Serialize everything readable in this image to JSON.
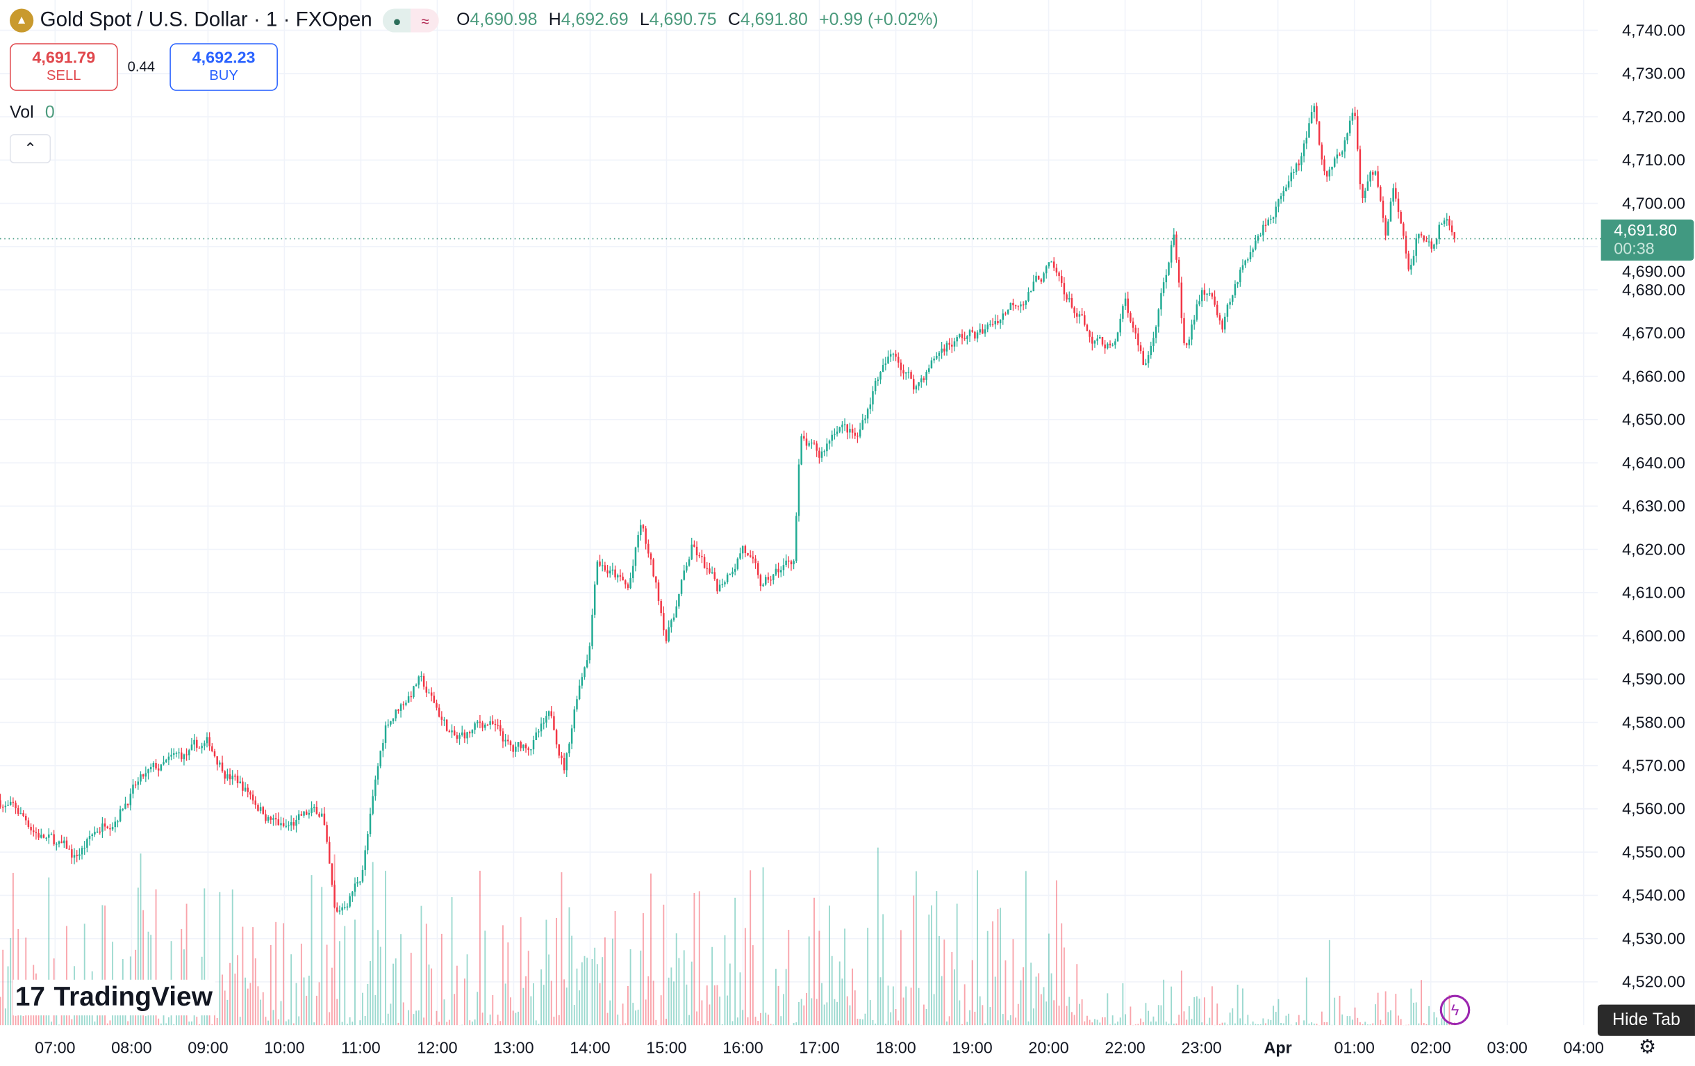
{
  "header": {
    "symbol": "Gold Spot / U.S. Dollar · 1 · FXOpen",
    "open_label": "O",
    "open": "4,690.98",
    "high_label": "H",
    "high": "4,692.69",
    "low_label": "L",
    "low": "4,690.75",
    "close_label": "C",
    "close": "4,691.80",
    "change": "+0.99 (+0.02%)",
    "market_status_icon": "dot",
    "data_delay_icon": "≈"
  },
  "trade": {
    "sell_price": "4,691.79",
    "sell_label": "SELL",
    "spread": "0.44",
    "buy_price": "4,692.23",
    "buy_label": "BUY"
  },
  "volume": {
    "label": "Vol",
    "value": "0"
  },
  "last_price": {
    "price": "4,691.80",
    "countdown": "00:38"
  },
  "branding": {
    "name": "TradingView"
  },
  "hide_tab": "Hide Tab",
  "colors": {
    "up": "#22ab94",
    "down": "#f23645",
    "last": "#419981",
    "sell": "#e0474c",
    "buy": "#2962ff",
    "grid": "#f0f3fa"
  },
  "chart_data": {
    "type": "candlestick",
    "interval": "1 minute",
    "ylim": [
      4515,
      4745
    ],
    "y_ticks": [
      "4,740.00",
      "4,730.00",
      "4,720.00",
      "4,710.00",
      "4,700.00",
      "4,690.00",
      "4,680.00",
      "4,670.00",
      "4,660.00",
      "4,650.00",
      "4,640.00",
      "4,630.00",
      "4,620.00",
      "4,610.00",
      "4,600.00",
      "4,590.00",
      "4,580.00",
      "4,570.00",
      "4,560.00",
      "4,550.00",
      "4,540.00",
      "4,530.00",
      "4,520.00"
    ],
    "x_ticks": [
      "07:00",
      "08:00",
      "09:00",
      "10:00",
      "11:00",
      "12:00",
      "13:00",
      "14:00",
      "15:00",
      "16:00",
      "17:00",
      "18:00",
      "19:00",
      "20:00",
      "22:00",
      "23:00",
      "Apr",
      "01:00",
      "02:00",
      "03:00",
      "04:00"
    ],
    "grid": true,
    "price_path": [
      [
        "06:17",
        4562
      ],
      [
        "07:15",
        4548
      ],
      [
        "08:00",
        4565
      ],
      [
        "09:00",
        4574
      ],
      [
        "10:00",
        4555
      ],
      [
        "10:30",
        4559
      ],
      [
        "10:40",
        4533
      ],
      [
        "11:00",
        4545
      ],
      [
        "11:20",
        4580
      ],
      [
        "11:45",
        4590
      ],
      [
        "12:15",
        4575
      ],
      [
        "12:40",
        4580
      ],
      [
        "13:00",
        4572
      ],
      [
        "13:30",
        4580
      ],
      [
        "13:40",
        4570
      ],
      [
        "13:50",
        4588
      ],
      [
        "14:00",
        4600
      ],
      [
        "14:05",
        4620
      ],
      [
        "14:30",
        4610
      ],
      [
        "14:40",
        4625
      ],
      [
        "15:00",
        4600
      ],
      [
        "15:20",
        4620
      ],
      [
        "15:40",
        4610
      ],
      [
        "16:00",
        4622
      ],
      [
        "16:15",
        4610
      ],
      [
        "16:40",
        4618
      ],
      [
        "16:45",
        4645
      ],
      [
        "17:00",
        4640
      ],
      [
        "17:15",
        4650
      ],
      [
        "17:30",
        4645
      ],
      [
        "17:45",
        4660
      ],
      [
        "18:00",
        4665
      ],
      [
        "18:15",
        4658
      ],
      [
        "18:40",
        4668
      ],
      [
        "19:10",
        4670
      ],
      [
        "19:30",
        4677
      ],
      [
        "20:00",
        4685
      ],
      [
        "20:54",
        4672
      ],
      [
        "21:45",
        4666
      ],
      [
        "22:00",
        4678
      ],
      [
        "22:15",
        4663
      ],
      [
        "22:25",
        4675
      ],
      [
        "22:38",
        4692
      ],
      [
        "22:47",
        4664
      ],
      [
        "23:00",
        4680
      ],
      [
        "23:17",
        4673
      ],
      [
        "23:30",
        4685
      ],
      [
        "23:42",
        4693
      ],
      [
        "23:55",
        4700
      ],
      [
        "00:17",
        4708
      ],
      [
        "00:28",
        4720
      ],
      [
        "00:38",
        4703
      ],
      [
        "00:51",
        4712
      ],
      [
        "01:00",
        4720
      ],
      [
        "01:06",
        4700
      ],
      [
        "01:16",
        4706
      ],
      [
        "01:25",
        4693
      ],
      [
        "01:31",
        4705
      ],
      [
        "01:42",
        4683
      ],
      [
        "01:50",
        4693
      ],
      [
        "02:00",
        4688
      ],
      [
        "02:07",
        4696
      ],
      [
        "02:20",
        4691.8
      ]
    ]
  }
}
